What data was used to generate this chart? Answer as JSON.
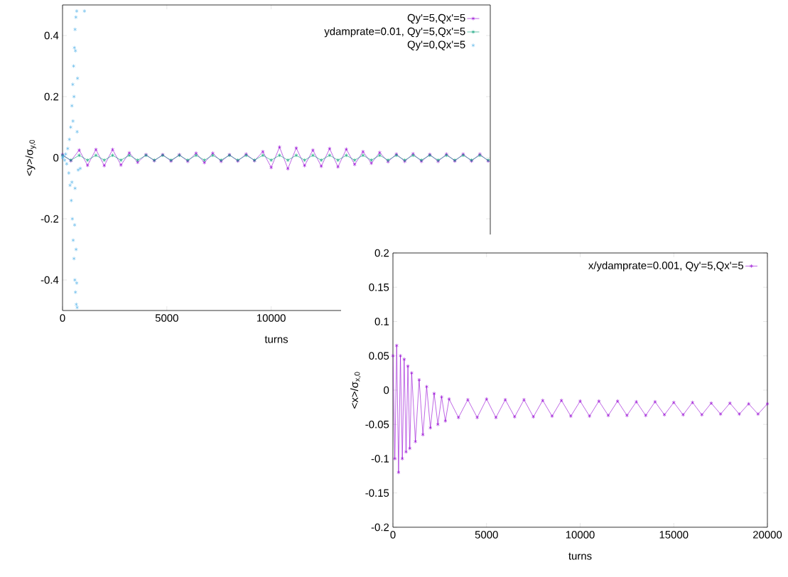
{
  "chart_data": [
    {
      "type": "line",
      "xlabel": "turns",
      "ylabel": "<y>/σ$_{y,0}$",
      "xlim": [
        0,
        20500
      ],
      "ylim": [
        -0.5,
        0.5
      ],
      "xticks": [
        0,
        5000,
        10000
      ],
      "yticks": [
        -0.4,
        -0.2,
        0,
        0.2,
        0.4
      ],
      "legend": "top right",
      "grid": false,
      "marker": "cross",
      "series": [
        {
          "name": "Qy'=5,Qx'=5",
          "color": "#9400d3",
          "x": [
            0,
            400,
            800,
            1200,
            1600,
            2000,
            2400,
            2800,
            3200,
            3600,
            4000,
            4400,
            4800,
            5200,
            5600,
            6000,
            6400,
            6800,
            7200,
            7600,
            8000,
            8400,
            8800,
            9200,
            9600,
            10000,
            10400,
            10800,
            11200,
            11600,
            12000,
            12400,
            12800,
            13200,
            13600,
            14000,
            14400,
            14800,
            15200,
            15600,
            16000,
            16400,
            16800,
            17200,
            17600,
            18000,
            18400,
            18800,
            19200,
            19600,
            20000,
            20400
          ],
          "values": [
            0.01,
            -0.01,
            0.025,
            -0.025,
            0.027,
            -0.026,
            0.027,
            -0.024,
            0.016,
            -0.015,
            0.01,
            -0.01,
            0.01,
            -0.011,
            0.01,
            -0.012,
            0.015,
            -0.016,
            0.015,
            -0.012,
            0.01,
            -0.011,
            0.012,
            -0.01,
            0.02,
            -0.032,
            0.035,
            -0.036,
            0.032,
            -0.026,
            0.025,
            -0.028,
            0.03,
            -0.03,
            0.028,
            -0.022,
            0.02,
            -0.018,
            0.017,
            -0.013,
            0.012,
            -0.012,
            0.013,
            -0.012,
            0.011,
            -0.012,
            0.012,
            -0.011,
            0.012,
            -0.011,
            0.012,
            -0.011
          ]
        },
        {
          "name": "ydamprate=0.01, Qy'=5,Qx'=5",
          "color": "#009e73",
          "x": [
            0,
            400,
            800,
            1200,
            1600,
            2000,
            2400,
            2800,
            3200,
            3600,
            4000,
            4400,
            4800,
            5200,
            5600,
            6000,
            6400,
            6800,
            7200,
            7600,
            8000,
            8400,
            8800,
            9200,
            9600,
            10000,
            10400,
            10800,
            11200,
            11600,
            12000,
            12400,
            12800,
            13200,
            13600,
            14000,
            14400,
            14800,
            15200,
            15600,
            16000,
            16400,
            16800,
            17200,
            17600,
            18000,
            18400,
            18800,
            19200,
            19600,
            20000,
            20400
          ],
          "values": [
            0.008,
            -0.008,
            0.008,
            -0.008,
            0.008,
            -0.008,
            0.008,
            -0.008,
            0.008,
            -0.008,
            0.008,
            -0.008,
            0.008,
            -0.008,
            0.008,
            -0.008,
            0.008,
            -0.008,
            0.008,
            -0.008,
            0.008,
            -0.008,
            0.008,
            -0.008,
            0.008,
            -0.008,
            0.008,
            -0.008,
            0.008,
            -0.008,
            0.008,
            -0.008,
            0.008,
            -0.008,
            0.008,
            -0.008,
            0.008,
            -0.008,
            0.008,
            -0.008,
            0.008,
            -0.008,
            0.008,
            -0.008,
            0.008,
            -0.008,
            0.008,
            -0.008,
            0.008,
            -0.008,
            0.008,
            -0.008
          ]
        },
        {
          "name": "Qy'=0,Qx'=5",
          "color": "#56b4e9",
          "type": "scatter",
          "marker": "cross",
          "x": [
            0,
            50,
            100,
            150,
            200,
            250,
            300,
            330,
            360,
            390,
            420,
            450,
            470,
            490,
            510,
            530,
            550,
            570,
            590,
            600,
            620,
            640,
            660,
            680,
            700,
            1050,
            720,
            750,
            850,
            700,
            600,
            550,
            650,
            500,
            450,
            620,
            580,
            680
          ],
          "values": [
            0,
            0.005,
            -0.008,
            0.012,
            -0.02,
            0.03,
            -0.05,
            0.06,
            -0.09,
            0.1,
            -0.14,
            0.17,
            -0.2,
            0.24,
            -0.27,
            0.3,
            -0.33,
            0.36,
            -0.4,
            0.42,
            -0.44,
            0.46,
            -0.48,
            0.48,
            -0.49,
            0.48,
            0.26,
            -0.04,
            -0.035,
            0.085,
            -0.1,
            0.2,
            -0.3,
            0.12,
            -0.08,
            0.35,
            -0.22,
            -0.41
          ]
        }
      ]
    },
    {
      "type": "line",
      "xlabel": "turns",
      "ylabel": "<x>/σ$_{x,0}$",
      "xlim": [
        0,
        20000
      ],
      "ylim": [
        -0.2,
        0.2
      ],
      "xticks": [
        0,
        5000,
        10000,
        15000,
        20000
      ],
      "yticks": [
        -0.2,
        -0.15,
        -0.1,
        -0.05,
        0,
        0.05,
        0.1,
        0.15,
        0.2
      ],
      "legend": "top right",
      "grid": false,
      "marker": "cross",
      "series": [
        {
          "name": "x/ydamprate=0.001, Qy'=5,Qx'=5",
          "color": "#9400d3",
          "x": [
            0,
            100,
            200,
            300,
            400,
            500,
            600,
            700,
            800,
            900,
            1000,
            1200,
            1400,
            1600,
            1800,
            2000,
            2200,
            2400,
            2600,
            2800,
            3000,
            3500,
            4000,
            4500,
            5000,
            5500,
            6000,
            6500,
            7000,
            7500,
            8000,
            8500,
            9000,
            9500,
            10000,
            10500,
            11000,
            11500,
            12000,
            12500,
            13000,
            13500,
            14000,
            14500,
            15000,
            15500,
            16000,
            16500,
            17000,
            17500,
            18000,
            18500,
            19000,
            19500,
            20000
          ],
          "values": [
            0.05,
            -0.1,
            0.065,
            -0.12,
            0.05,
            -0.1,
            0.045,
            -0.09,
            0.035,
            -0.085,
            0.025,
            -0.075,
            0.015,
            -0.065,
            0.005,
            -0.055,
            -0.005,
            -0.05,
            -0.01,
            -0.045,
            -0.013,
            -0.04,
            -0.014,
            -0.04,
            -0.013,
            -0.04,
            -0.014,
            -0.039,
            -0.014,
            -0.039,
            -0.015,
            -0.038,
            -0.015,
            -0.038,
            -0.016,
            -0.038,
            -0.016,
            -0.037,
            -0.016,
            -0.037,
            -0.017,
            -0.037,
            -0.017,
            -0.036,
            -0.018,
            -0.036,
            -0.018,
            -0.036,
            -0.019,
            -0.035,
            -0.019,
            -0.035,
            -0.02,
            -0.035,
            -0.02
          ]
        }
      ]
    }
  ]
}
